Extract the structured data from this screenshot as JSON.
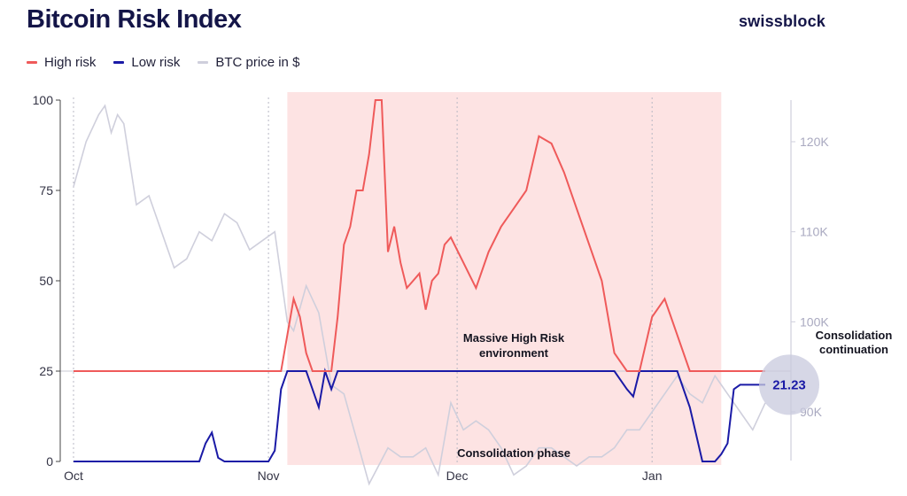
{
  "header": {
    "title": "Bitcoin Risk Index",
    "brand": "swissblock"
  },
  "legend": [
    {
      "label": "High risk",
      "color": "#ef5a5a"
    },
    {
      "label": "Low risk",
      "color": "#1a1aa6"
    },
    {
      "label": "BTC price in $",
      "color": "#cfcfdc"
    }
  ],
  "chart_data": {
    "type": "line",
    "title": "Bitcoin Risk Index",
    "x_axis": {
      "ticks": [
        "Oct",
        "Nov",
        "Dec",
        "Jan"
      ]
    },
    "y_axis_left": {
      "range": [
        0,
        100
      ],
      "ticks": [
        "0",
        "25",
        "50",
        "75",
        "100"
      ]
    },
    "y_axis_right": {
      "range": [
        80000,
        124000
      ],
      "ticks": [
        "90K",
        "100K",
        "110K",
        "120K"
      ]
    },
    "threshold": 25,
    "shaded_region": {
      "from_day": 34,
      "to_day": 103
    },
    "risk_index": {
      "name": "Bitcoin Risk Index",
      "days": [
        0,
        10,
        20,
        21,
        22,
        23,
        24,
        25,
        26,
        27,
        28,
        30,
        31,
        32,
        33,
        34,
        35,
        36,
        37,
        38,
        39,
        40,
        41,
        42,
        43,
        44,
        45,
        46,
        47,
        48,
        49,
        50,
        51,
        52,
        53,
        54,
        55,
        56,
        57,
        58,
        59,
        60,
        62,
        64,
        66,
        68,
        70,
        72,
        74,
        76,
        78,
        80,
        82,
        84,
        86,
        88,
        89,
        90,
        92,
        94,
        96,
        98,
        100,
        101,
        102,
        103,
        104,
        105,
        106,
        107,
        108,
        109,
        110
      ],
      "values": [
        0,
        0,
        0,
        5,
        8,
        1,
        0,
        0,
        0,
        0,
        0,
        0,
        0,
        3,
        20,
        35,
        45,
        40,
        30,
        20,
        15,
        25,
        20,
        40,
        60,
        65,
        75,
        75,
        85,
        100,
        100,
        58,
        65,
        55,
        48,
        50,
        52,
        42,
        50,
        52,
        60,
        62,
        55,
        48,
        58,
        65,
        70,
        75,
        90,
        88,
        80,
        70,
        60,
        50,
        30,
        20,
        18,
        25,
        40,
        45,
        35,
        15,
        0,
        0,
        0,
        2,
        5,
        20,
        21.23,
        21.23,
        21.23,
        21.23,
        21.23
      ]
    },
    "btc_price": {
      "name": "BTC price in $",
      "days": [
        0,
        2,
        4,
        5,
        6,
        7,
        8,
        10,
        12,
        14,
        16,
        18,
        20,
        22,
        24,
        26,
        28,
        30,
        32,
        34,
        35,
        37,
        39,
        41,
        43,
        45,
        47,
        50,
        52,
        54,
        56,
        58,
        60,
        62,
        64,
        66,
        68,
        70,
        72,
        74,
        76,
        78,
        80,
        82,
        84,
        86,
        88,
        90,
        92,
        94,
        96,
        98,
        100,
        102,
        103,
        104,
        106,
        108,
        110
      ],
      "values": [
        115000,
        120000,
        123000,
        124000,
        121000,
        123000,
        122000,
        113000,
        114000,
        110000,
        106000,
        107000,
        110000,
        109000,
        112000,
        111000,
        108000,
        109000,
        110000,
        100000,
        99000,
        104000,
        101000,
        93000,
        92000,
        87000,
        82000,
        86000,
        85000,
        85000,
        86000,
        83000,
        91000,
        88000,
        89000,
        88000,
        86000,
        83000,
        84000,
        86000,
        86000,
        85000,
        84000,
        85000,
        85000,
        86000,
        88000,
        88000,
        90000,
        92000,
        94000,
        92000,
        91000,
        94000,
        93000,
        92000,
        90000,
        88000,
        91000
      ]
    },
    "current_value": {
      "label": "21.23",
      "value": 21.23
    }
  },
  "annotations": {
    "massive_line1": "Massive High Risk",
    "massive_line2": "environment",
    "consolidation_phase": "Consolidation phase",
    "continuation_line1": "Consolidation",
    "continuation_line2": "continuation"
  }
}
